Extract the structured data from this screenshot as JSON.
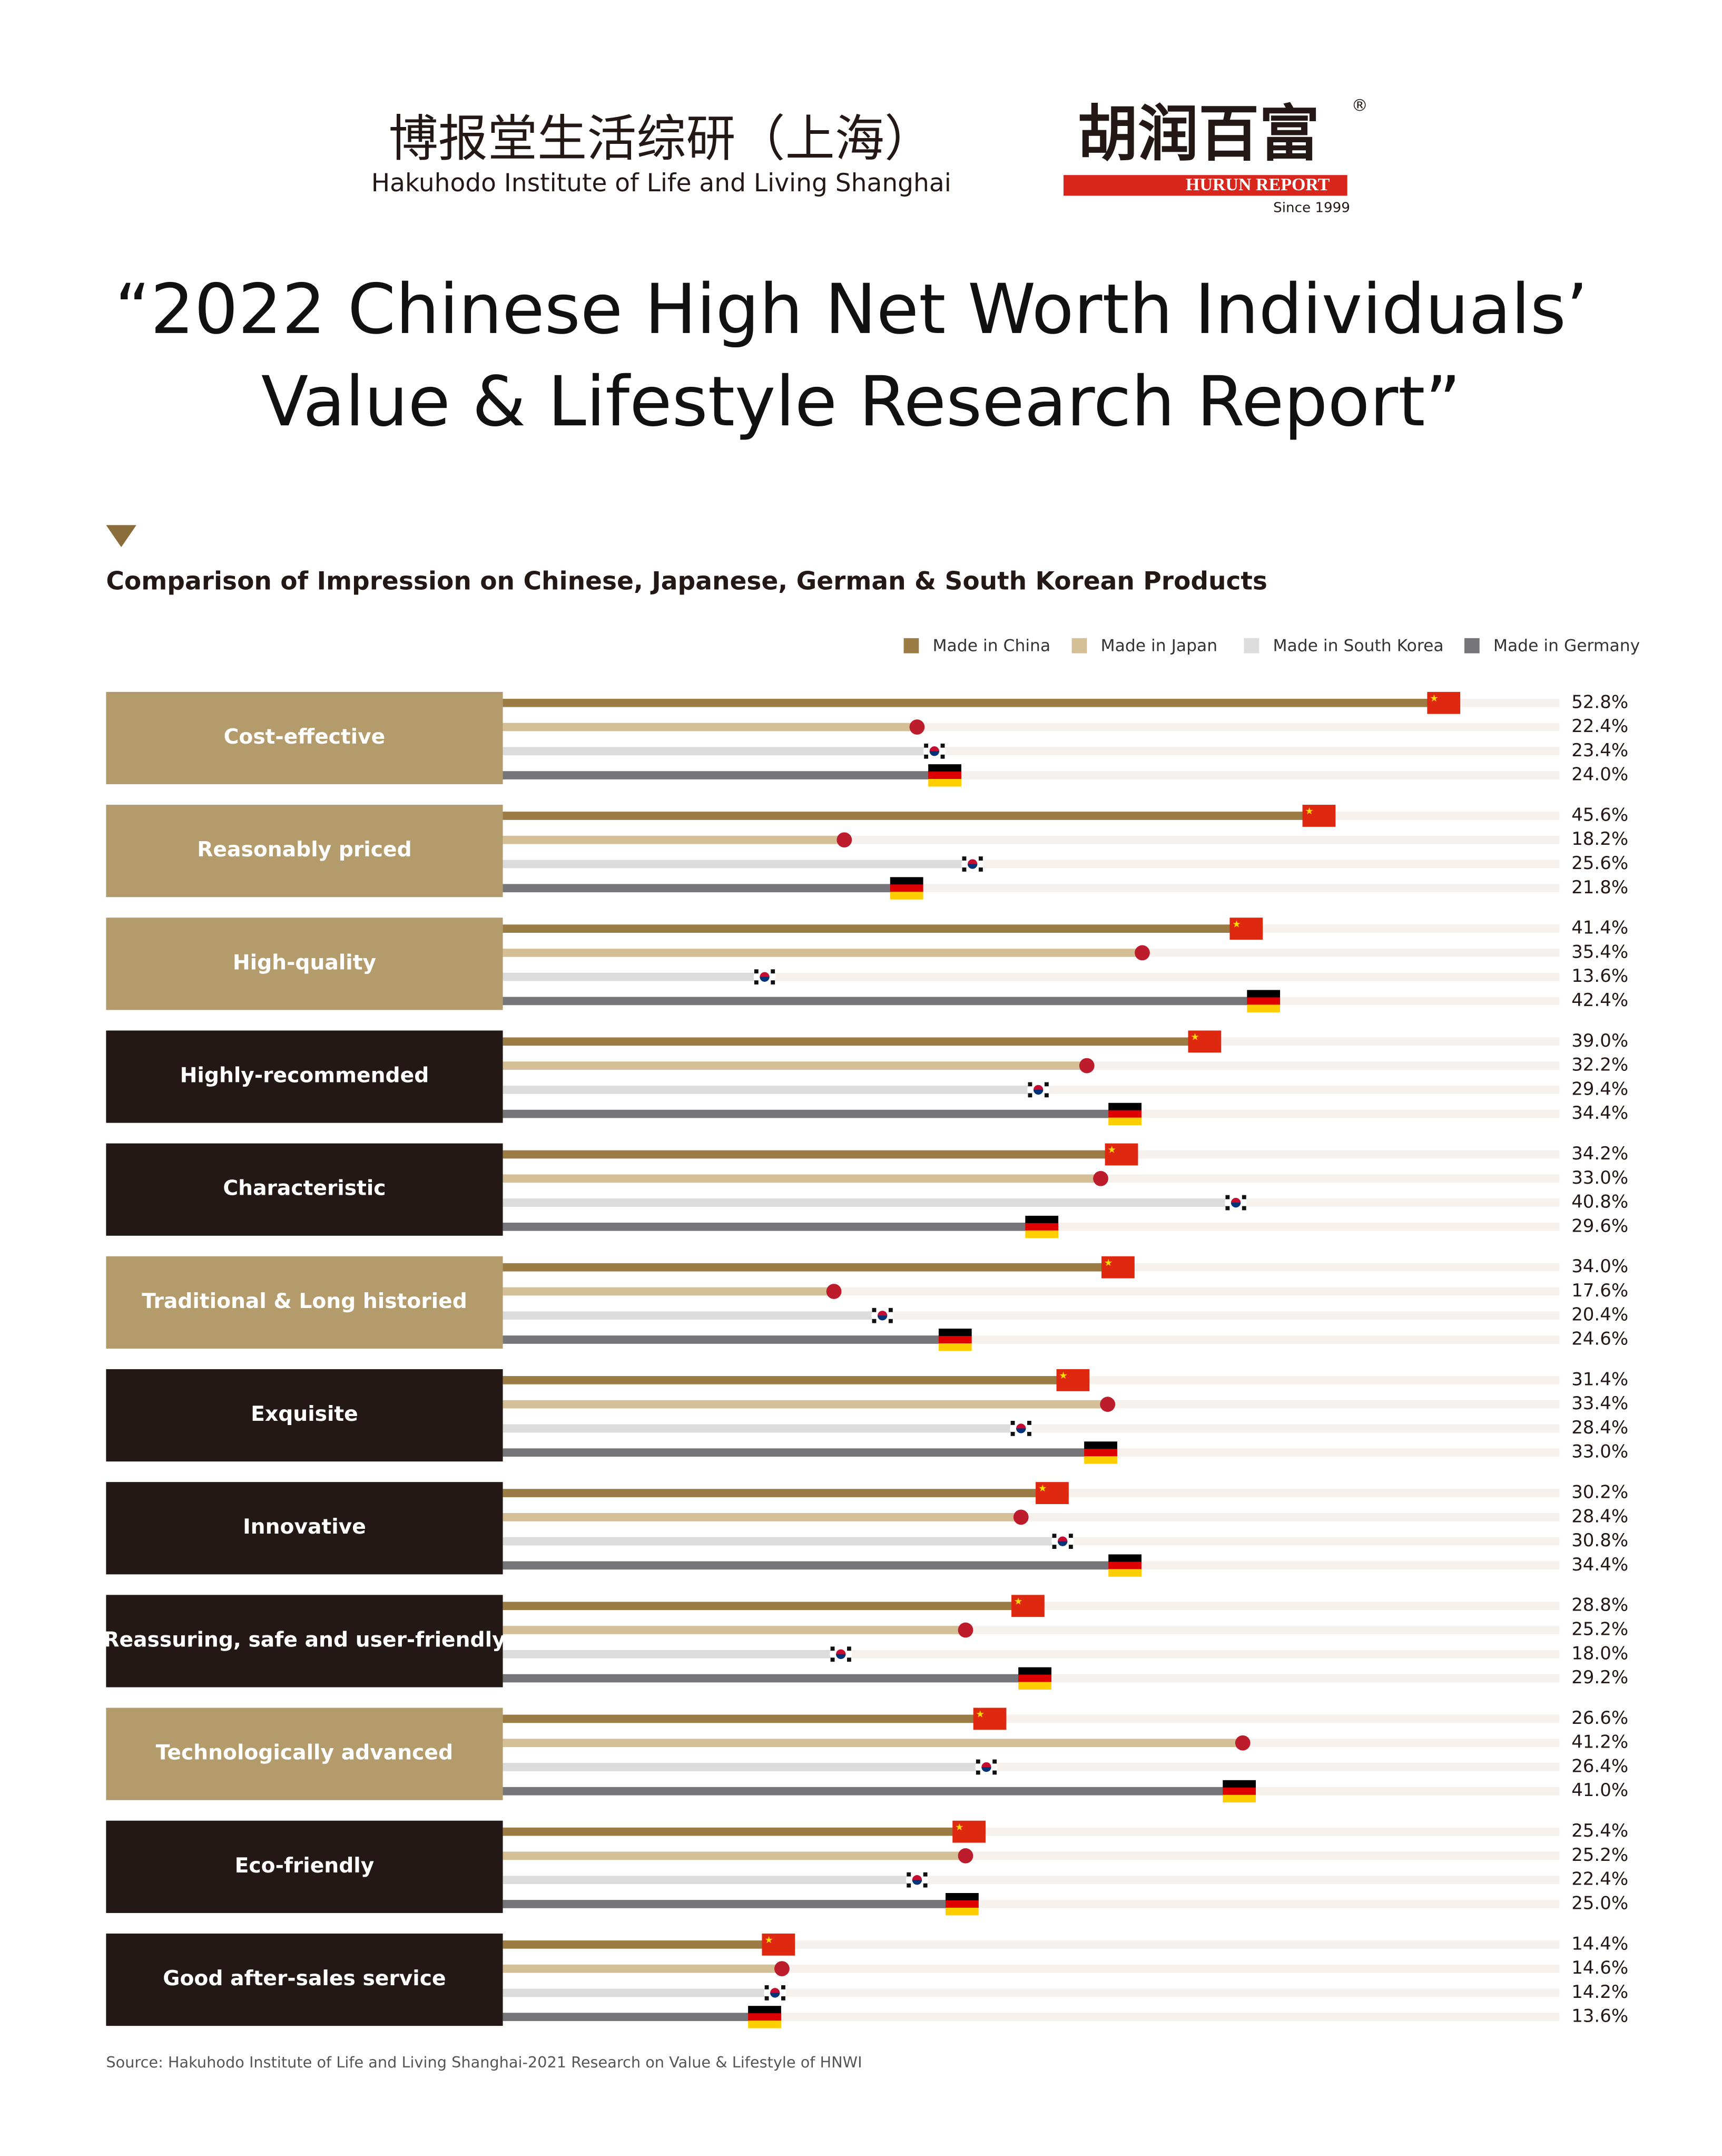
{
  "header": {
    "org_cn": "博报堂生活综研（上海）",
    "org_en": "Hakuhodo Institute of Life and Living Shanghai",
    "logo_cn": "胡润百富",
    "logo_mark": "®",
    "logo_en": "HURUN REPORT",
    "logo_since": "Since 1999"
  },
  "chart_data": {
    "type": "bar",
    "orientation": "horizontal",
    "title": [
      "“2022 Chinese High Net Worth Individuals’",
      "Value & Lifestyle Research Report”"
    ],
    "subtitle": "Comparison of Impression on Chinese, Japanese, German & South Korean Products",
    "source": "Source: Hakuhodo Institute of Life and Living Shanghai-2021 Research on Value & Lifestyle of HNWI",
    "categories": [
      "Cost-effective",
      "Reasonably priced",
      "High-quality",
      "Highly-recommended",
      "Characteristic",
      "Traditional & Long historied",
      "Exquisite",
      "Innovative",
      "Reassuring, safe and user-friendly",
      "Technologically advanced",
      "Eco-friendly",
      "Good after-sales service"
    ],
    "category_colors": [
      "#b39b6b",
      "#b39b6b",
      "#b39b6b",
      "#231815",
      "#231815",
      "#b39b6b",
      "#231815",
      "#231815",
      "#231815",
      "#b39b6b",
      "#231815",
      "#231815"
    ],
    "legend": "top-right",
    "series": [
      {
        "name": "Made in China",
        "color": "#9b7c45",
        "values": [
          52.8,
          45.6,
          41.4,
          39.0,
          34.2,
          34.0,
          31.4,
          30.2,
          28.8,
          26.6,
          25.4,
          14.4
        ],
        "value_labels": [
          "52.8%",
          "45.6%",
          "41.4%",
          "39.0%",
          "34.2%",
          "34.0%",
          "31.4%",
          "30.2%",
          "28.8%",
          "26.6%",
          "25.4%",
          "14.4%"
        ]
      },
      {
        "name": "Made in Japan",
        "color": "#d4bf97",
        "values": [
          22.4,
          18.2,
          35.4,
          32.2,
          33.0,
          17.6,
          33.4,
          28.4,
          25.2,
          41.2,
          25.2,
          14.6
        ],
        "value_labels": [
          "22.4%",
          "18.2%",
          "35.4%",
          "32.2%",
          "33.0%",
          "17.6%",
          "33.4%",
          "28.4%",
          "25.2%",
          "41.2%",
          "25.2%",
          "14.6%"
        ]
      },
      {
        "name": "Made in South Korea",
        "color": "#dcdcdc",
        "values": [
          23.4,
          25.6,
          13.6,
          29.4,
          40.8,
          20.4,
          28.4,
          30.8,
          18.0,
          26.4,
          22.4,
          14.2
        ],
        "value_labels": [
          "23.4%",
          "25.6%",
          "13.6%",
          "29.4%",
          "40.8%",
          "20.4%",
          "28.4%",
          "30.8%",
          "18.0%",
          "26.4%",
          "22.4%",
          "14.2%"
        ]
      },
      {
        "name": "Made in Germany",
        "color": "#76767a",
        "values": [
          24.0,
          21.8,
          42.4,
          34.4,
          29.6,
          24.6,
          33.0,
          34.4,
          29.2,
          41.0,
          25.0,
          13.6
        ],
        "value_labels": [
          "24.0%",
          "21.8%",
          "42.4%",
          "34.4%",
          "29.6%",
          "24.6%",
          "33.0%",
          "34.4%",
          "29.2%",
          "41.0%",
          "25.0%",
          "13.6%"
        ]
      }
    ]
  }
}
